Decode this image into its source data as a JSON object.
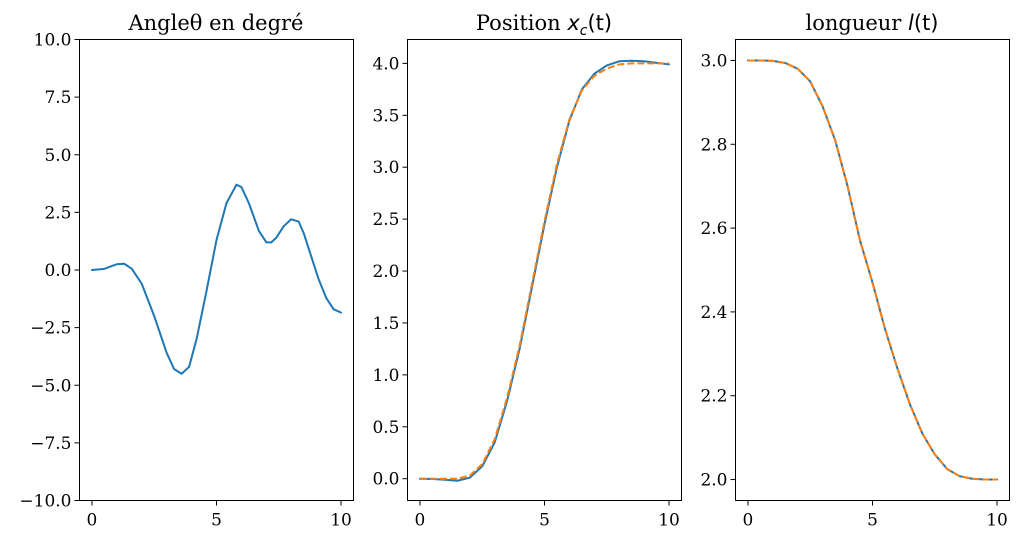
{
  "chart_data": [
    {
      "type": "line",
      "title": "Angleθ en degré",
      "xlim": [
        -0.5,
        10.5
      ],
      "ylim": [
        -10,
        10
      ],
      "x_ticks": [
        0,
        5,
        10
      ],
      "x_tick_labels": [
        "0",
        "5",
        "10"
      ],
      "y_ticks": [
        -10,
        -7.5,
        -5,
        -2.5,
        0,
        2.5,
        5,
        7.5,
        10
      ],
      "y_tick_labels": [
        "−10.0",
        "−7.5",
        "−5.0",
        "−2.5",
        "0.0",
        "2.5",
        "5.0",
        "7.5",
        "10.0"
      ],
      "series": [
        {
          "color": "#1f77b4",
          "style": "solid",
          "x": [
            0,
            0.5,
            1.0,
            1.3,
            1.6,
            2.0,
            2.5,
            3.0,
            3.3,
            3.6,
            3.9,
            4.2,
            4.6,
            5.0,
            5.4,
            5.8,
            6.0,
            6.3,
            6.7,
            7.0,
            7.2,
            7.4,
            7.7,
            8.0,
            8.3,
            8.5,
            8.8,
            9.1,
            9.4,
            9.7,
            10.0
          ],
          "y": [
            0.0,
            0.05,
            0.25,
            0.27,
            0.05,
            -0.6,
            -2.0,
            -3.6,
            -4.3,
            -4.5,
            -4.2,
            -3.0,
            -0.9,
            1.3,
            2.9,
            3.7,
            3.6,
            2.9,
            1.7,
            1.2,
            1.2,
            1.4,
            1.9,
            2.2,
            2.1,
            1.6,
            0.6,
            -0.4,
            -1.2,
            -1.7,
            -1.85
          ]
        }
      ]
    },
    {
      "type": "line",
      "title_prefix": "Position ",
      "title_math": "x",
      "title_sub": "c",
      "title_suffix": "(t)",
      "xlim": [
        -0.5,
        10.5
      ],
      "ylim": [
        -0.21,
        4.23
      ],
      "x_ticks": [
        0,
        5,
        10
      ],
      "x_tick_labels": [
        "0",
        "5",
        "10"
      ],
      "y_ticks": [
        0,
        0.5,
        1.0,
        1.5,
        2.0,
        2.5,
        3.0,
        3.5,
        4.0
      ],
      "y_tick_labels": [
        "0.0",
        "0.5",
        "1.0",
        "1.5",
        "2.0",
        "2.5",
        "3.0",
        "3.5",
        "4.0"
      ],
      "series": [
        {
          "color": "#1f77b4",
          "style": "solid",
          "x": [
            0,
            0.5,
            1.0,
            1.5,
            2.0,
            2.5,
            3.0,
            3.5,
            4.0,
            4.5,
            5.0,
            5.5,
            6.0,
            6.5,
            7.0,
            7.5,
            8.0,
            8.5,
            9.0,
            9.5,
            10.0
          ],
          "y": [
            0.0,
            -0.003,
            -0.01,
            -0.02,
            0.01,
            0.12,
            0.35,
            0.75,
            1.25,
            1.85,
            2.45,
            3.0,
            3.45,
            3.75,
            3.9,
            3.98,
            4.02,
            4.025,
            4.02,
            4.005,
            3.99
          ]
        },
        {
          "color": "#ff7f0e",
          "style": "dashed",
          "x": [
            0,
            0.5,
            1.0,
            1.5,
            2.0,
            2.5,
            3.0,
            3.5,
            4.0,
            4.5,
            5.0,
            5.5,
            6.0,
            6.5,
            7.0,
            7.5,
            8.0,
            8.5,
            9.0,
            9.5,
            10.0
          ],
          "y": [
            0.0,
            0.0,
            0.0,
            0.0,
            0.03,
            0.14,
            0.38,
            0.78,
            1.28,
            1.88,
            2.48,
            3.03,
            3.46,
            3.74,
            3.88,
            3.95,
            3.99,
            4.0,
            4.0,
            4.0,
            4.0
          ]
        }
      ]
    },
    {
      "type": "line",
      "title_prefix": "longueur ",
      "title_math": "l",
      "title_sub": "",
      "title_suffix": "(t)",
      "xlim": [
        -0.5,
        10.5
      ],
      "ylim": [
        1.95,
        3.05
      ],
      "x_ticks": [
        0,
        5,
        10
      ],
      "x_tick_labels": [
        "0",
        "5",
        "10"
      ],
      "y_ticks": [
        2.0,
        2.2,
        2.4,
        2.6,
        2.8,
        3.0
      ],
      "y_tick_labels": [
        "2.0",
        "2.2",
        "2.4",
        "2.6",
        "2.8",
        "3.0"
      ],
      "series": [
        {
          "color": "#1f77b4",
          "style": "solid",
          "x": [
            0,
            0.5,
            1.0,
            1.5,
            2.0,
            2.5,
            3.0,
            3.5,
            4.0,
            4.5,
            5.0,
            5.5,
            6.0,
            6.5,
            7.0,
            7.5,
            8.0,
            8.5,
            9.0,
            9.5,
            10.0
          ],
          "y": [
            3.0,
            3.0,
            2.999,
            2.994,
            2.98,
            2.95,
            2.89,
            2.81,
            2.7,
            2.57,
            2.47,
            2.36,
            2.265,
            2.18,
            2.11,
            2.06,
            2.025,
            2.008,
            2.002,
            2.0,
            2.0
          ]
        },
        {
          "color": "#ff7f0e",
          "style": "dashed",
          "x": [
            0,
            0.5,
            1.0,
            1.5,
            2.0,
            2.5,
            3.0,
            3.5,
            4.0,
            4.5,
            5.0,
            5.5,
            6.0,
            6.5,
            7.0,
            7.5,
            8.0,
            8.5,
            9.0,
            9.5,
            10.0
          ],
          "y": [
            3.0,
            3.0,
            2.999,
            2.994,
            2.98,
            2.95,
            2.89,
            2.81,
            2.7,
            2.57,
            2.47,
            2.36,
            2.265,
            2.18,
            2.11,
            2.06,
            2.025,
            2.008,
            2.002,
            2.0,
            2.0
          ]
        }
      ]
    }
  ]
}
